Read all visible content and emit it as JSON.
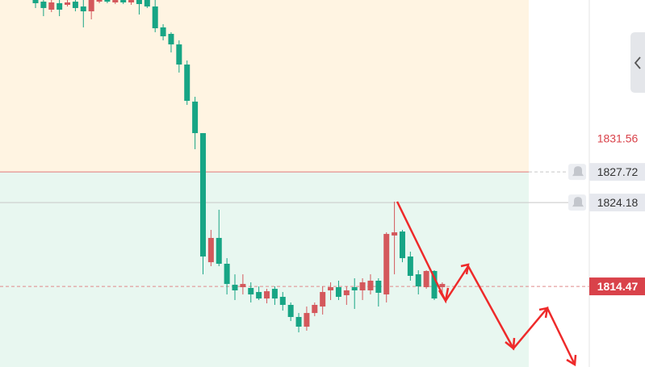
{
  "chart_data": {
    "type": "candlestick",
    "ylim": [
      1805.14,
      1847.62
    ],
    "up_color": "#d4585c",
    "down_color": "#17a585",
    "zone_colors": {
      "above": "#fff4e2",
      "below": "#e8f7f0"
    },
    "price_lines": [
      {
        "value": 1831.56,
        "color": "#d9424a",
        "style": "label-only"
      },
      {
        "value": 1827.72,
        "color": "#e07a7a",
        "style": "solid",
        "split": true,
        "label_bg": "#e6e8ee",
        "bell": true
      },
      {
        "value": 1824.18,
        "color": "#c8c8c8",
        "style": "solid",
        "label_bg": "#e6e8ee",
        "bell": true
      },
      {
        "value": 1814.47,
        "color": "#e08a8a",
        "style": "dashed",
        "label_bg": "#d9424a"
      }
    ],
    "candles": [
      [
        1847.62,
        1847.62,
        1846.69,
        1847.25
      ],
      [
        1847.43,
        1847.62,
        1845.75,
        1846.69
      ],
      [
        1846.5,
        1847.62,
        1846.22,
        1847.34
      ],
      [
        1847.25,
        1847.62,
        1845.75,
        1846.5
      ],
      [
        1847.06,
        1847.62,
        1846.87,
        1847.34
      ],
      [
        1847.43,
        1847.62,
        1846.31,
        1846.69
      ],
      [
        1846.87,
        1847.62,
        1844.45,
        1846.31
      ],
      [
        1846.31,
        1847.62,
        1845.38,
        1847.62
      ],
      [
        1847.43,
        1847.62,
        1847.25,
        1847.62
      ],
      [
        1847.62,
        1847.62,
        1847.25,
        1847.43
      ],
      [
        1847.34,
        1847.62,
        1847.15,
        1847.62
      ],
      [
        1847.62,
        1847.62,
        1847.15,
        1847.34
      ],
      [
        1847.34,
        1847.62,
        1847.06,
        1847.62
      ],
      [
        1847.62,
        1847.62,
        1845.94,
        1847.15
      ],
      [
        1847.62,
        1847.62,
        1846.69,
        1846.87
      ],
      [
        1846.87,
        1847.62,
        1843.89,
        1844.35
      ],
      [
        1844.45,
        1844.82,
        1842.95,
        1843.42
      ],
      [
        1843.7,
        1843.89,
        1841.55,
        1842.48
      ],
      [
        1842.48,
        1842.95,
        1839.22,
        1840.15
      ],
      [
        1840.15,
        1840.62,
        1835.48,
        1835.95
      ],
      [
        1835.86,
        1836.42,
        1830.35,
        1832.21
      ],
      [
        1832.21,
        1832.21,
        1815.87,
        1817.93
      ],
      [
        1817.27,
        1821.01,
        1816.81,
        1820.08
      ],
      [
        1820.08,
        1823.34,
        1816.81,
        1817.09
      ],
      [
        1817.09,
        1817.74,
        1813.54,
        1814.75
      ],
      [
        1814.66,
        1815.87,
        1812.89,
        1814.01
      ],
      [
        1814.38,
        1815.87,
        1813.54,
        1814.75
      ],
      [
        1814.29,
        1814.94,
        1812.61,
        1813.54
      ],
      [
        1813.82,
        1814.47,
        1812.89,
        1813.07
      ],
      [
        1813.07,
        1814.19,
        1812.51,
        1813.91
      ],
      [
        1814.19,
        1814.47,
        1812.33,
        1813.07
      ],
      [
        1813.26,
        1813.82,
        1811.67,
        1812.33
      ],
      [
        1812.33,
        1812.61,
        1810.46,
        1810.93
      ],
      [
        1810.93,
        1811.39,
        1809.15,
        1809.81
      ],
      [
        1809.81,
        1812.14,
        1809.34,
        1811.39
      ],
      [
        1811.39,
        1812.61,
        1811.02,
        1812.33
      ],
      [
        1812.14,
        1814.47,
        1811.21,
        1813.82
      ],
      [
        1814.01,
        1814.94,
        1812.89,
        1814.38
      ],
      [
        1814.38,
        1815.13,
        1812.89,
        1813.26
      ],
      [
        1813.45,
        1814.47,
        1812.33,
        1814.01
      ],
      [
        1814.38,
        1815.41,
        1811.86,
        1814.01
      ],
      [
        1814.01,
        1815.41,
        1812.89,
        1814.94
      ],
      [
        1814.01,
        1815.87,
        1813.54,
        1815.13
      ],
      [
        1815.13,
        1815.41,
        1812.14,
        1813.73
      ],
      [
        1813.54,
        1820.73,
        1812.61,
        1820.54
      ],
      [
        1820.36,
        1824.28,
        1815.87,
        1820.73
      ],
      [
        1820.82,
        1821.01,
        1817.27,
        1817.74
      ],
      [
        1817.93,
        1818.49,
        1815.13,
        1815.69
      ],
      [
        1815.87,
        1816.34,
        1813.54,
        1814.47
      ],
      [
        1814.38,
        1816.34,
        1814.19,
        1816.25
      ],
      [
        1816.25,
        1816.34,
        1812.89,
        1813.07
      ],
      [
        1814.38,
        1814.94,
        1813.54,
        1814.75
      ]
    ]
  }
}
